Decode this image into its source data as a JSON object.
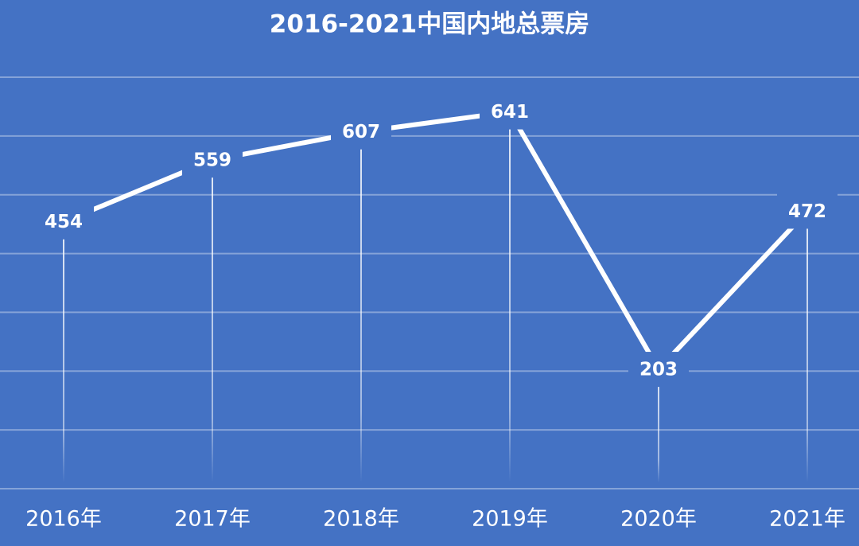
{
  "chart_data": {
    "type": "line",
    "title": "2016-2021中国内地总票房",
    "categories": [
      "2016年",
      "2017年",
      "2018年",
      "2019年",
      "2020年",
      "2021年"
    ],
    "values": [
      454,
      559,
      607,
      641,
      203,
      472
    ],
    "color": "#ffffff",
    "background": "#4472c4",
    "ylim": [
      0,
      700
    ],
    "yticks": [
      0,
      100,
      200,
      300,
      400,
      500,
      600,
      700
    ],
    "grid": true
  }
}
